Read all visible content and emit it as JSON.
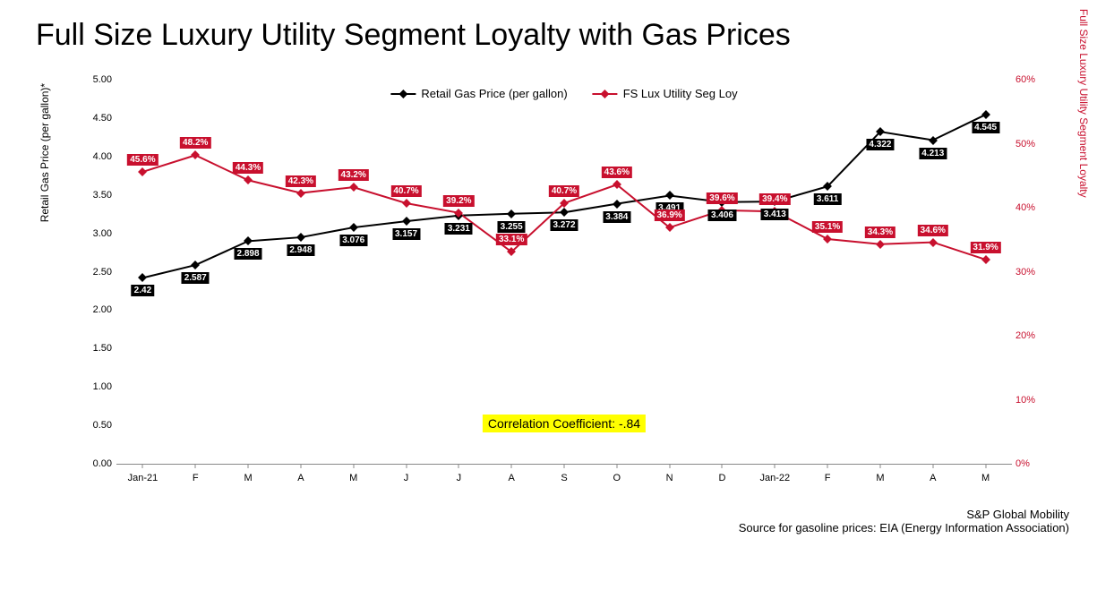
{
  "chart": {
    "title": "Full Size Luxury Utility Segment Loyalty with Gas Prices",
    "type": "line_dual_axis",
    "background_color": "#ffffff",
    "legend": {
      "position": "top-center",
      "items": [
        {
          "label": "Retail Gas Price (per gallon)",
          "color": "#000000",
          "marker": "diamond"
        },
        {
          "label": "FS Lux Utility Seg Loy",
          "color": "#c8102e",
          "marker": "diamond"
        }
      ]
    },
    "x_axis": {
      "categories": [
        "Jan-21",
        "F",
        "M",
        "A",
        "M",
        "J",
        "J",
        "A",
        "S",
        "O",
        "N",
        "D",
        "Jan-22",
        "F",
        "M",
        "A",
        "M"
      ],
      "fontsize": 11
    },
    "y_axis_left": {
      "label": "Retail Gas Price (per gallon)*",
      "min": 0,
      "max": 5,
      "step": 0.5,
      "ticks": [
        "0.00",
        "0.50",
        "1.00",
        "1.50",
        "2.00",
        "2.50",
        "3.00",
        "3.50",
        "4.00",
        "4.50",
        "5.00"
      ],
      "color": "#000000",
      "fontsize": 11
    },
    "y_axis_right": {
      "label": "Full Size Luxury Utility Segment Loyalty",
      "min": 0,
      "max": 60,
      "step": 10,
      "ticks": [
        "0%",
        "10%",
        "20%",
        "30%",
        "40%",
        "50%",
        "60%"
      ],
      "color": "#c8102e",
      "fontsize": 11
    },
    "series": [
      {
        "name": "Retail Gas Price (per gallon)",
        "axis": "left",
        "color": "#000000",
        "line_width": 2,
        "marker": "diamond",
        "values": [
          2.42,
          2.587,
          2.898,
          2.948,
          3.076,
          3.157,
          3.231,
          3.255,
          3.272,
          3.384,
          3.491,
          3.406,
          3.413,
          3.611,
          4.322,
          4.213,
          4.545
        ],
        "data_labels": [
          "2.42",
          "2.587",
          "2.898",
          "2.948",
          "3.076",
          "3.157",
          "3.231",
          "3.255",
          "3.272",
          "3.384",
          "3.491",
          "3.406",
          "3.413",
          "3.611",
          "4.322",
          "4.213",
          "4.545"
        ],
        "label_position": "below"
      },
      {
        "name": "FS Lux Utility Seg Loy",
        "axis": "right",
        "color": "#c8102e",
        "line_width": 2,
        "marker": "diamond",
        "values": [
          45.6,
          48.2,
          44.3,
          42.3,
          43.2,
          40.7,
          39.2,
          33.1,
          40.7,
          43.6,
          36.9,
          39.6,
          39.4,
          35.1,
          34.3,
          34.6,
          31.9
        ],
        "data_labels": [
          "45.6%",
          "48.2%",
          "44.3%",
          "42.3%",
          "43.2%",
          "40.7%",
          "39.2%",
          "33.1%",
          "40.7%",
          "43.6%",
          "36.9%",
          "39.6%",
          "39.4%",
          "35.1%",
          "34.3%",
          "34.6%",
          "31.9%"
        ],
        "label_position": "above"
      }
    ],
    "annotation": {
      "text": "Correlation Coefficient: -.84",
      "background": "#ffff00",
      "color": "#000000",
      "fontsize": 14
    },
    "footer": {
      "line1": "S&P Global Mobility",
      "line2": "Source for gasoline prices: EIA (Energy Information Association)",
      "fontsize": 13
    }
  }
}
